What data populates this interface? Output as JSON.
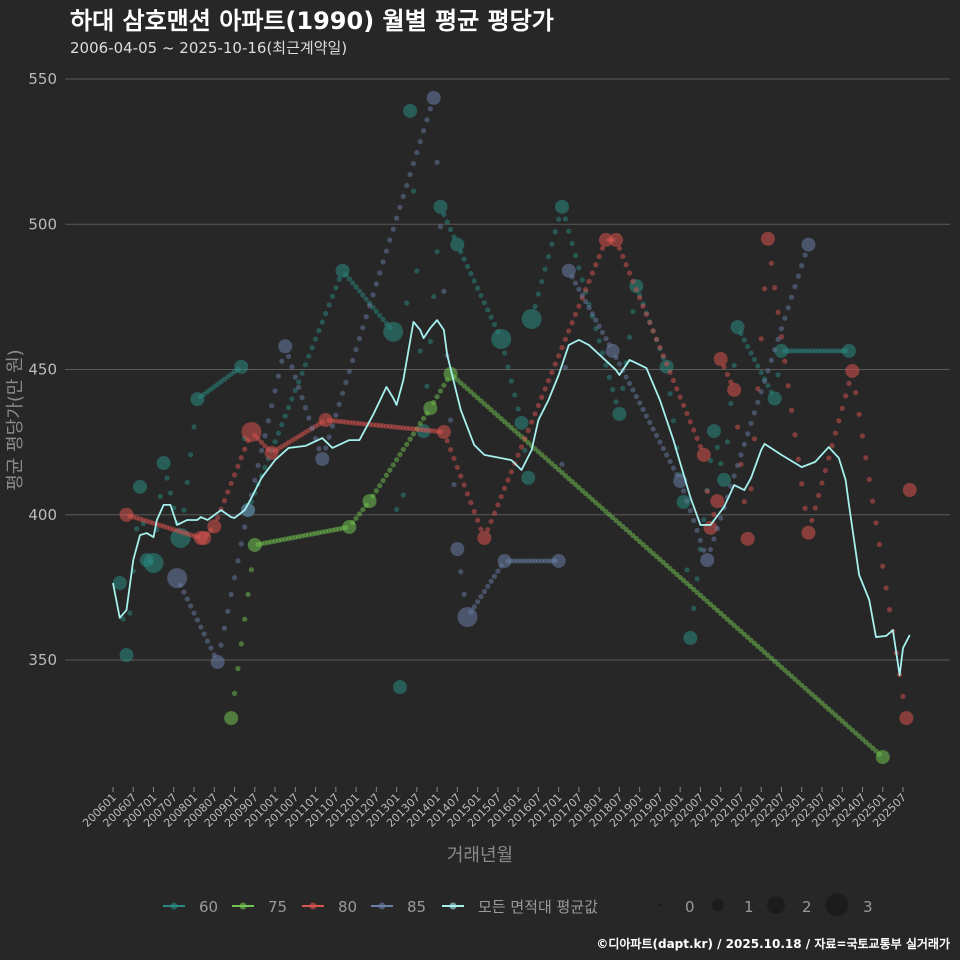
{
  "header": {
    "title": "하대 삼호맨션 아파트(1990) 월별 평균 평당가",
    "subtitle": "2006-04-05 ~ 2025-10-16(최근계약일)"
  },
  "caption": "©디아파트(dapt.kr) / 2025.10.18 / 자료=국토교통부 실거래가",
  "chart_data": {
    "type": "scatter",
    "title": "하대 삼호맨션 아파트(1990) 월별 평균 평당가",
    "xlabel": "거래년월",
    "ylabel": "평균 평당가(만 원)",
    "x_unit": "months since 2006-01",
    "xlim": [
      0,
      234
    ],
    "ylim": [
      310,
      550
    ],
    "yticks": [
      350,
      400,
      450,
      500,
      550
    ],
    "ytick_labels": [
      "350",
      "400",
      "450",
      "500",
      "550"
    ],
    "xtick_labels": [
      "200601",
      "200607",
      "200701",
      "200707",
      "200801",
      "200807",
      "200901",
      "200907",
      "201001",
      "201007",
      "201101",
      "201107",
      "201201",
      "201207",
      "201301",
      "201307",
      "201401",
      "201407",
      "201501",
      "201507",
      "201601",
      "201607",
      "201701",
      "201707",
      "201801",
      "201807",
      "201901",
      "201907",
      "202001",
      "202007",
      "202101",
      "202107",
      "202201",
      "202207",
      "202301",
      "202307",
      "202401",
      "202407",
      "202501",
      "202507"
    ],
    "grid": true,
    "legend_placement": "bottom",
    "size_legend": {
      "labels": [
        "0",
        "1",
        "2",
        "3"
      ]
    },
    "series": [
      {
        "name": "60",
        "color": "#2a8a82",
        "points": [
          [
            2,
            376.5,
            1
          ],
          [
            4,
            351.7,
            1
          ],
          [
            8,
            409.6,
            1
          ],
          [
            10,
            384.4,
            1
          ],
          [
            12,
            383.4,
            2
          ],
          [
            15,
            417.8,
            1
          ],
          [
            20,
            392,
            2
          ],
          [
            25,
            439.8,
            1
          ],
          [
            38,
            450.9,
            1
          ],
          [
            40,
            401.6,
            1
          ],
          [
            68,
            484,
            1
          ],
          [
            83,
            463,
            2
          ],
          [
            85,
            340.7,
            1
          ],
          [
            88,
            539,
            1
          ],
          [
            92,
            428.8,
            1
          ],
          [
            97,
            506,
            1
          ],
          [
            102,
            493,
            1
          ],
          [
            115,
            460.5,
            2
          ],
          [
            121,
            431.6,
            1
          ],
          [
            123,
            412.7,
            1
          ],
          [
            124,
            467.4,
            2
          ],
          [
            133,
            506,
            1
          ],
          [
            150,
            434.7,
            1
          ],
          [
            155,
            478.7,
            1
          ],
          [
            164,
            451,
            1
          ],
          [
            169,
            404.4,
            1
          ],
          [
            171,
            357.6,
            1
          ],
          [
            178,
            428.8,
            1
          ],
          [
            181,
            412,
            1
          ],
          [
            185,
            464.6,
            1
          ],
          [
            196,
            440,
            1
          ],
          [
            198,
            456.4,
            1
          ],
          [
            218,
            456.4,
            1
          ]
        ]
      },
      {
        "name": "75",
        "color": "#72c450",
        "points": [
          [
            35,
            330,
            1
          ],
          [
            42,
            389.6,
            1
          ],
          [
            70,
            395.8,
            1
          ],
          [
            76,
            404.7,
            1
          ],
          [
            94,
            436.7,
            1
          ],
          [
            100,
            448.5,
            1
          ],
          [
            228,
            316.6,
            1
          ]
        ]
      },
      {
        "name": "80",
        "color": "#d9534f",
        "points": [
          [
            4,
            400,
            1
          ],
          [
            26,
            392,
            1
          ],
          [
            27,
            392,
            1
          ],
          [
            30,
            396,
            1
          ],
          [
            41,
            428.5,
            2
          ],
          [
            47,
            421.3,
            1
          ],
          [
            63,
            432.6,
            1
          ],
          [
            98,
            428.5,
            1
          ],
          [
            110,
            392,
            1
          ],
          [
            146,
            494.6,
            1
          ],
          [
            149,
            494.6,
            1
          ],
          [
            175,
            420.6,
            1
          ],
          [
            177,
            395.5,
            1
          ],
          [
            179,
            404.7,
            1
          ],
          [
            180,
            453.6,
            1
          ],
          [
            184,
            443,
            1
          ],
          [
            188,
            391.7,
            1
          ],
          [
            194,
            495,
            1
          ],
          [
            206,
            393.8,
            1
          ],
          [
            219,
            449.5,
            1
          ],
          [
            235,
            330,
            1
          ],
          [
            236,
            408.5,
            1
          ]
        ]
      },
      {
        "name": "85",
        "color": "#6a7ea6",
        "points": [
          [
            19,
            378.2,
            2
          ],
          [
            31,
            349.3,
            1
          ],
          [
            40,
            401.6,
            1
          ],
          [
            51,
            458,
            1
          ],
          [
            62,
            419.2,
            1
          ],
          [
            95,
            543.5,
            1
          ],
          [
            102,
            388.2,
            1
          ],
          [
            105,
            364.8,
            2
          ],
          [
            116,
            384.1,
            1
          ],
          [
            132,
            384.1,
            1
          ],
          [
            135,
            484,
            1
          ],
          [
            148,
            456.4,
            1
          ],
          [
            168,
            411.6,
            1
          ],
          [
            176,
            384.4,
            1
          ],
          [
            206,
            493,
            1
          ]
        ]
      }
    ],
    "average": {
      "name": "모든 면적대 평균값",
      "color": "#a6f0ee",
      "points": [
        [
          0,
          376.5
        ],
        [
          2,
          364.5
        ],
        [
          4,
          367.2
        ],
        [
          6,
          384.4
        ],
        [
          8,
          393
        ],
        [
          10,
          393.7
        ],
        [
          12,
          392.3
        ],
        [
          13,
          398.2
        ],
        [
          15,
          403.4
        ],
        [
          17,
          403.4
        ],
        [
          19,
          396.5
        ],
        [
          22,
          398.2
        ],
        [
          25,
          398.2
        ],
        [
          26,
          399.2
        ],
        [
          28,
          398.2
        ],
        [
          30,
          399.9
        ],
        [
          32,
          401.6
        ],
        [
          35,
          399.2
        ],
        [
          36,
          398.9
        ],
        [
          39,
          401.6
        ],
        [
          41,
          405.8
        ],
        [
          44,
          412.7
        ],
        [
          48,
          418.8
        ],
        [
          52,
          423
        ],
        [
          57,
          423.7
        ],
        [
          62,
          426.4
        ],
        [
          65,
          423
        ],
        [
          70,
          425.7
        ],
        [
          73,
          425.7
        ],
        [
          77,
          434.3
        ],
        [
          81,
          444
        ],
        [
          83,
          440.2
        ],
        [
          84,
          437.8
        ],
        [
          86,
          446.4
        ],
        [
          89,
          466.4
        ],
        [
          91,
          463.6
        ],
        [
          92,
          460.8
        ],
        [
          94,
          464.3
        ],
        [
          96,
          467
        ],
        [
          98,
          463.6
        ],
        [
          99,
          455
        ],
        [
          103,
          436.1
        ],
        [
          107,
          424
        ],
        [
          110,
          420.6
        ],
        [
          115,
          419.5
        ],
        [
          118,
          418.8
        ],
        [
          121,
          415.4
        ],
        [
          124,
          422.3
        ],
        [
          126,
          432.6
        ],
        [
          129,
          439.5
        ],
        [
          132,
          448.1
        ],
        [
          135,
          458.4
        ],
        [
          138,
          460.2
        ],
        [
          141,
          458.4
        ],
        [
          149,
          449.8
        ],
        [
          150,
          448.1
        ],
        [
          153,
          453.3
        ],
        [
          158,
          450.5
        ],
        [
          162,
          439.5
        ],
        [
          166,
          425.7
        ],
        [
          171,
          406.1
        ],
        [
          174,
          396.5
        ],
        [
          177,
          396.5
        ],
        [
          181,
          402.7
        ],
        [
          184,
          410.2
        ],
        [
          187,
          408.5
        ],
        [
          189,
          412.7
        ],
        [
          192,
          422.3
        ],
        [
          193,
          424.4
        ],
        [
          198,
          420.6
        ],
        [
          204,
          416.4
        ],
        [
          208,
          418.2
        ],
        [
          212,
          423.3
        ],
        [
          215,
          419.5
        ],
        [
          217,
          412
        ],
        [
          218,
          403.4
        ],
        [
          221,
          379.3
        ],
        [
          224,
          370.7
        ],
        [
          226,
          357.9
        ],
        [
          229,
          358.3
        ],
        [
          231,
          360.3
        ],
        [
          233,
          344.8
        ],
        [
          234,
          354.1
        ],
        [
          236,
          358.6
        ]
      ]
    }
  }
}
